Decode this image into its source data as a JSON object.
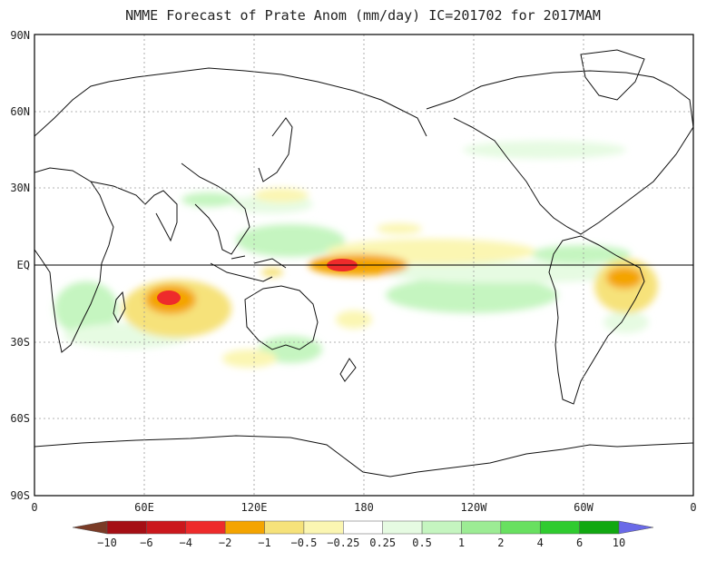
{
  "title": "NMME Forecast of Prate Anom (mm/day) IC=201702 for 2017MAM",
  "axes": {
    "y_ticks": [
      "90N",
      "60N",
      "30N",
      "EQ",
      "30S",
      "60S",
      "90S"
    ],
    "x_ticks": [
      "0",
      "60E",
      "120E",
      "180",
      "120W",
      "60W",
      "0"
    ],
    "grid": true
  },
  "colorbar": {
    "labels": [
      "-10",
      "-6",
      "-4",
      "-2",
      "-1",
      "-0.5",
      "-0.25",
      "0.25",
      "0.5",
      "1",
      "2",
      "4",
      "6",
      "10"
    ],
    "colors": [
      "#7a3b27",
      "#a50f15",
      "#cb181d",
      "#ee2b2b",
      "#f4a400",
      "#f6e27a",
      "#fbf6b2",
      "#ffffff",
      "#e6fbe2",
      "#c5f5c0",
      "#9cec94",
      "#68e060",
      "#2fcb2f",
      "#11a811",
      "#6a6ae8"
    ]
  },
  "chart_data": {
    "type": "heatmap",
    "title": "NMME Forecast of Prate Anom (mm/day) IC=201702 for 2017MAM",
    "x_range": [
      "0",
      "0 (360)"
    ],
    "y_range": [
      "90S",
      "90N"
    ],
    "features": [
      {
        "name": "dry-central-pacific",
        "center_lon": 170,
        "center_lat": 0,
        "value": -6
      },
      {
        "name": "dry-south-indian-ocean",
        "center_lon": 72,
        "center_lat": -15,
        "value": -4
      },
      {
        "name": "dry-ne-brazil",
        "center_lon": 320,
        "center_lat": -5,
        "value": -2
      },
      {
        "name": "wet-west-pacific",
        "center_lon": 130,
        "center_lat": 10,
        "value": 1
      },
      {
        "name": "wet-south-pacific",
        "center_lon": 230,
        "center_lat": -15,
        "value": 1
      }
    ]
  }
}
